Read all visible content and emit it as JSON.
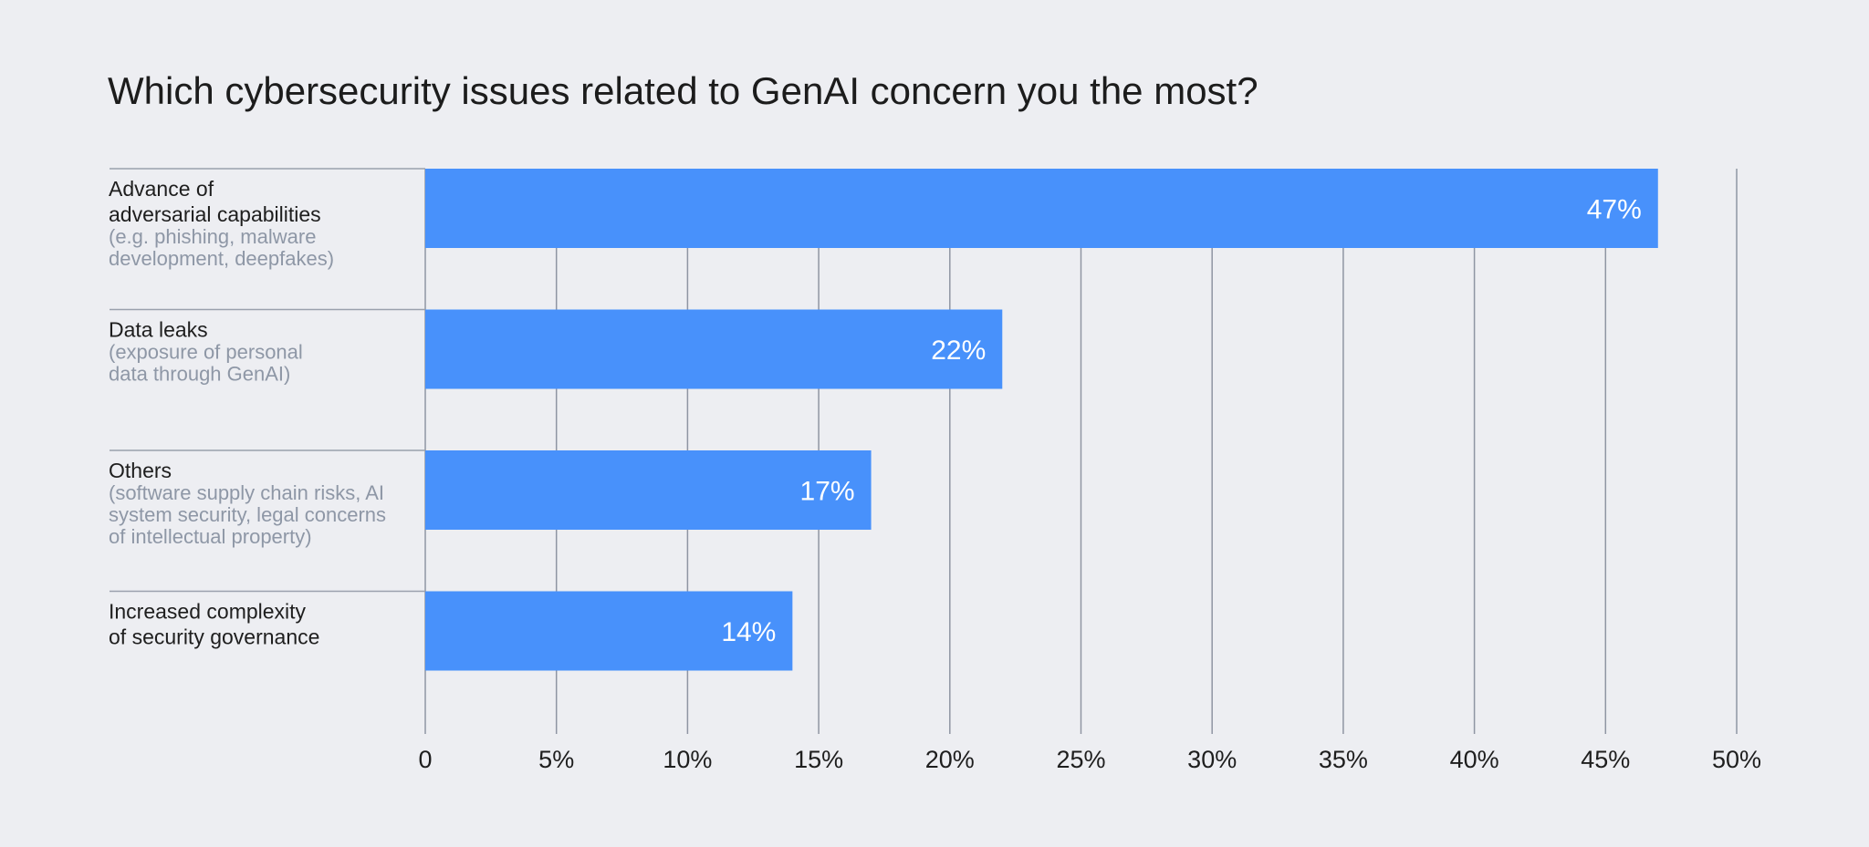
{
  "chart_data": {
    "type": "bar",
    "orientation": "horizontal",
    "title": "Which cybersecurity issues related to GenAI concern you the most?",
    "xlabel": "",
    "ylabel": "",
    "xlim": [
      0,
      50
    ],
    "ticks": [
      0,
      5,
      10,
      15,
      20,
      25,
      30,
      35,
      40,
      45,
      50
    ],
    "tick_labels": [
      "0",
      "5%",
      "10%",
      "15%",
      "20%",
      "25%",
      "30%",
      "35%",
      "40%",
      "45%",
      "50%"
    ],
    "grid": true,
    "bar_color": "#4891fb",
    "categories": [
      {
        "main": [
          "Advance of",
          "adversarial capabilities"
        ],
        "sub": [
          "(e.g. phishing, malware",
          "development, deepfakes)"
        ]
      },
      {
        "main": [
          "Data leaks"
        ],
        "sub": [
          "(exposure of personal",
          "data through GenAI)"
        ]
      },
      {
        "main": [
          "Others"
        ],
        "sub": [
          "(software supply chain risks, AI",
          "system security, legal concerns",
          "of intellectual property)"
        ]
      },
      {
        "main": [
          "Increased complexity",
          "of security governance"
        ],
        "sub": []
      }
    ],
    "values": [
      47,
      22,
      17,
      14
    ],
    "value_labels": [
      "47%",
      "22%",
      "17%",
      "14%"
    ]
  }
}
